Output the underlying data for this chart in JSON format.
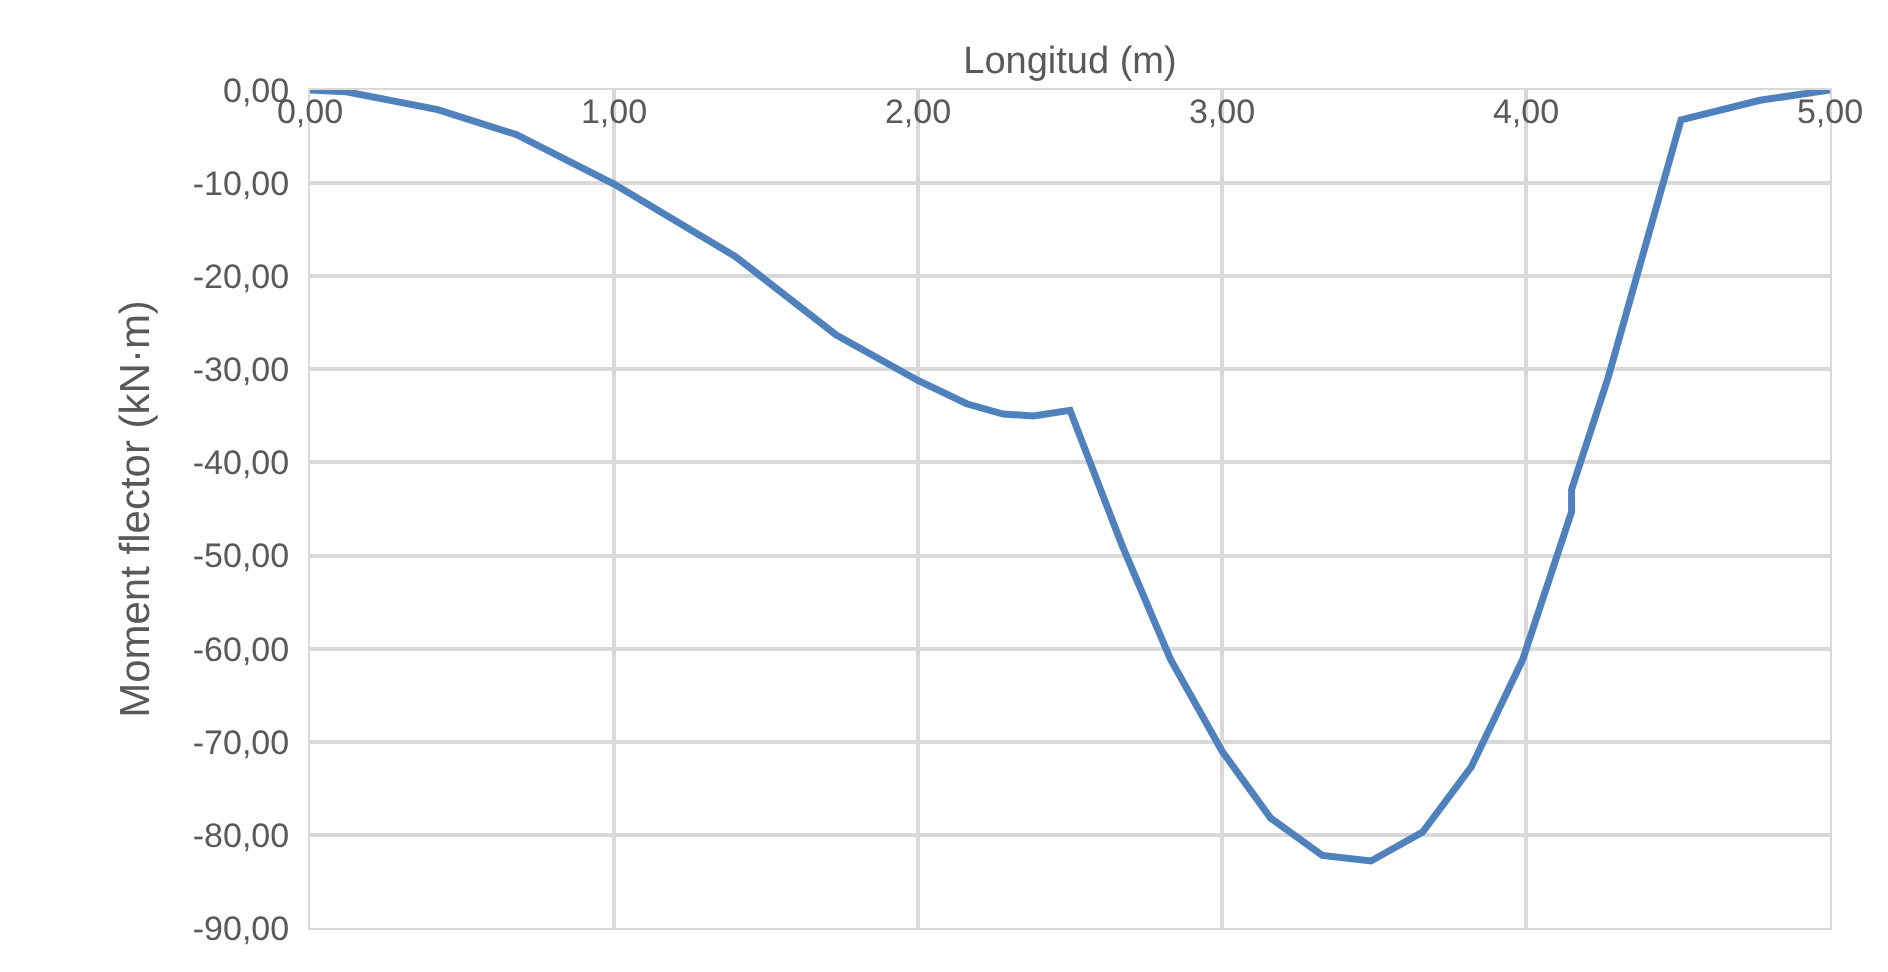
{
  "chart_data": {
    "type": "line",
    "xlabel": "Longitud (m)",
    "ylabel": "Moment flector (kN·m)",
    "x": [
      0,
      0.12,
      0.42,
      0.68,
      1.0,
      1.4,
      1.73,
      2.0,
      2.16,
      2.28,
      2.38,
      2.5,
      2.67,
      2.83,
      3.0,
      3.16,
      3.33,
      3.49,
      3.66,
      3.82,
      3.99,
      4.15,
      4.15,
      4.27,
      4.51,
      4.77,
      5.0
    ],
    "series": [
      {
        "color": "#4f81bd",
        "values": [
          0,
          -0.2,
          -2.1,
          -4.8,
          -10.1,
          -17.9,
          -26.3,
          -31.2,
          -33.7,
          -34.8,
          -35.0,
          -34.4,
          -48.8,
          -61.1,
          -71.0,
          -78.2,
          -82.2,
          -82.8,
          -79.7,
          -72.7,
          -61.1,
          -45.3,
          -42.9,
          -30.9,
          -3.2,
          -1.1,
          0
        ]
      }
    ],
    "xlim": [
      0,
      5
    ],
    "ylim": [
      -90,
      0
    ],
    "xticks": [
      {
        "value": 0,
        "label": "0,00"
      },
      {
        "value": 1,
        "label": "1,00"
      },
      {
        "value": 2,
        "label": "2,00"
      },
      {
        "value": 3,
        "label": "3,00"
      },
      {
        "value": 4,
        "label": "4,00"
      },
      {
        "value": 5,
        "label": "5,00"
      }
    ],
    "yticks": [
      {
        "value": 0,
        "label": "0,00"
      },
      {
        "value": -10,
        "label": "-10,00"
      },
      {
        "value": -20,
        "label": "-20,00"
      },
      {
        "value": -30,
        "label": "-30,00"
      },
      {
        "value": -40,
        "label": "-40,00"
      },
      {
        "value": -50,
        "label": "-50,00"
      },
      {
        "value": -60,
        "label": "-60,00"
      },
      {
        "value": -70,
        "label": "-70,00"
      },
      {
        "value": -80,
        "label": "-80,00"
      },
      {
        "value": -90,
        "label": "-90,00"
      }
    ],
    "grid": true,
    "marker": "none",
    "line_style": "solid"
  }
}
